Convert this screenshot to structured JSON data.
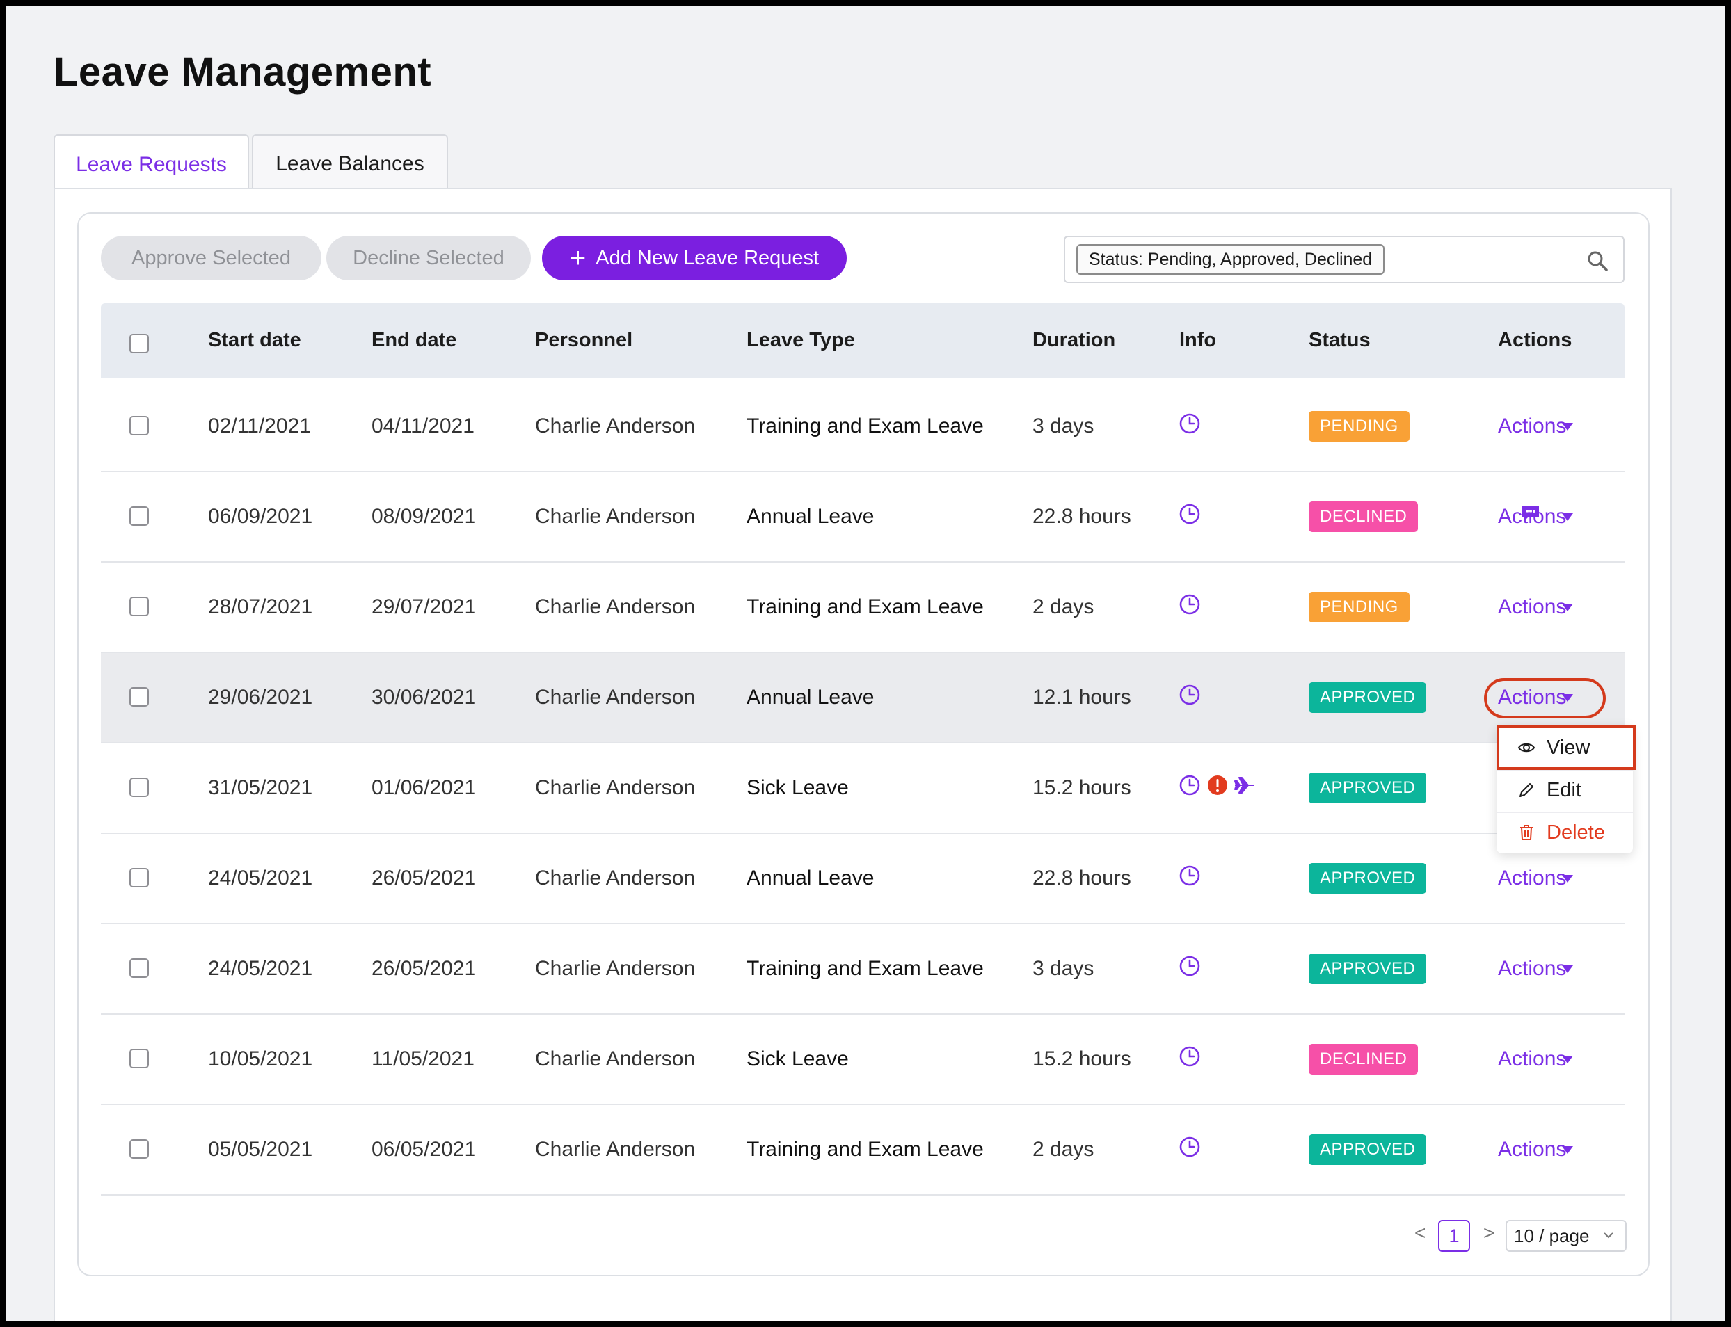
{
  "page": {
    "title": "Leave Management"
  },
  "tabs": [
    {
      "label": "Leave Requests",
      "active": true
    },
    {
      "label": "Leave Balances",
      "active": false
    }
  ],
  "toolbar": {
    "approve_label": "Approve Selected",
    "decline_label": "Decline Selected",
    "add_label": "Add New Leave Request",
    "filter_tag": "Status: Pending, Approved, Declined"
  },
  "table": {
    "columns": [
      "Start date",
      "End date",
      "Personnel",
      "Leave Type",
      "Duration",
      "Info",
      "Status",
      "Actions"
    ],
    "rows": [
      {
        "start": "02/11/2021",
        "end": "04/11/2021",
        "personnel": "Charlie Anderson",
        "type": "Training and Exam Leave",
        "duration": "3 days",
        "status": "PENDING",
        "actions": "Actions"
      },
      {
        "start": "06/09/2021",
        "end": "08/09/2021",
        "personnel": "Charlie Anderson",
        "type": "Annual Leave",
        "duration": "22.8 hours",
        "status": "DECLINED",
        "actions": "Actions"
      },
      {
        "start": "28/07/2021",
        "end": "29/07/2021",
        "personnel": "Charlie Anderson",
        "type": "Training and Exam Leave",
        "duration": "2 days",
        "status": "PENDING",
        "actions": "Actions"
      },
      {
        "start": "29/06/2021",
        "end": "30/06/2021",
        "personnel": "Charlie Anderson",
        "type": "Annual Leave",
        "duration": "12.1 hours",
        "status": "APPROVED",
        "actions": "Actions"
      },
      {
        "start": "31/05/2021",
        "end": "01/06/2021",
        "personnel": "Charlie Anderson",
        "type": "Sick Leave",
        "duration": "15.2 hours",
        "status": "APPROVED",
        "actions": ""
      },
      {
        "start": "24/05/2021",
        "end": "26/05/2021",
        "personnel": "Charlie Anderson",
        "type": "Annual Leave",
        "duration": "22.8 hours",
        "status": "APPROVED",
        "actions": "Actions"
      },
      {
        "start": "24/05/2021",
        "end": "26/05/2021",
        "personnel": "Charlie Anderson",
        "type": "Training and Exam Leave",
        "duration": "3 days",
        "status": "APPROVED",
        "actions": "Actions"
      },
      {
        "start": "10/05/2021",
        "end": "11/05/2021",
        "personnel": "Charlie Anderson",
        "type": "Sick Leave",
        "duration": "15.2 hours",
        "status": "DECLINED",
        "actions": "Actions"
      },
      {
        "start": "05/05/2021",
        "end": "06/05/2021",
        "personnel": "Charlie Anderson",
        "type": "Training and Exam Leave",
        "duration": "2 days",
        "status": "APPROVED",
        "actions": "Actions"
      }
    ]
  },
  "actions_menu": {
    "view": "View",
    "edit": "Edit",
    "delete": "Delete"
  },
  "pagination": {
    "prev": "<",
    "current": "1",
    "next": ">",
    "page_size": "10 / page"
  },
  "colors": {
    "accent": "#7b2ee6",
    "pending": "#f9a136",
    "declined": "#f650a8",
    "approved": "#0cb59b",
    "highlight": "#d43a1c"
  }
}
